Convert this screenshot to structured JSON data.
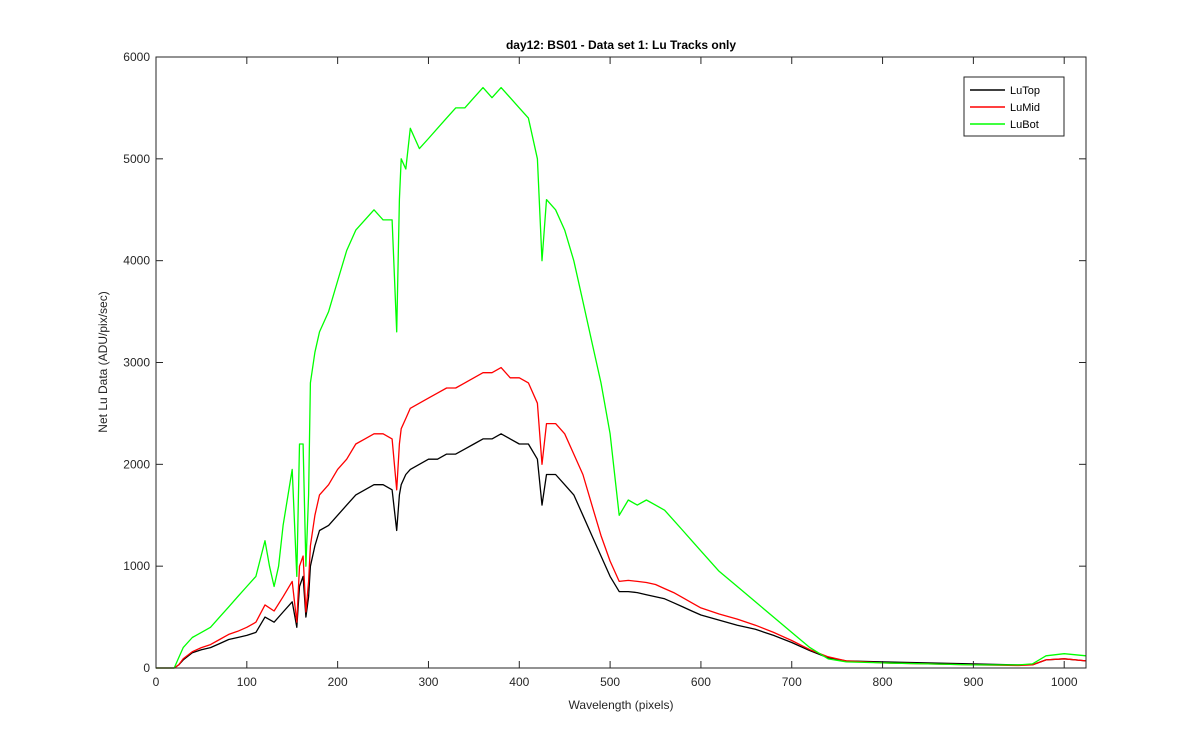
{
  "chart_data": {
    "type": "line",
    "title": "day12: BS01 - Data set 1: Lu Tracks only",
    "xlabel": "Wavelength (pixels)",
    "ylabel": "Net Lu Data (ADU/pix/sec)",
    "xlim": [
      0,
      1024
    ],
    "ylim": [
      0,
      6000
    ],
    "xticks": [
      0,
      100,
      200,
      300,
      400,
      500,
      600,
      700,
      800,
      900,
      1000
    ],
    "yticks": [
      0,
      1000,
      2000,
      3000,
      4000,
      5000,
      6000
    ],
    "grid": false,
    "legend_position": "top-right",
    "series": [
      {
        "name": "LuTop",
        "color": "#000000",
        "x": [
          0,
          20,
          25,
          30,
          40,
          50,
          60,
          70,
          80,
          90,
          100,
          110,
          120,
          130,
          140,
          150,
          155,
          158,
          162,
          165,
          168,
          170,
          175,
          180,
          190,
          200,
          210,
          220,
          230,
          240,
          250,
          260,
          265,
          268,
          270,
          275,
          280,
          290,
          300,
          310,
          320,
          330,
          340,
          350,
          360,
          370,
          380,
          390,
          400,
          410,
          420,
          425,
          430,
          440,
          450,
          460,
          470,
          480,
          490,
          500,
          510,
          520,
          530,
          540,
          550,
          560,
          570,
          580,
          590,
          600,
          620,
          640,
          660,
          680,
          700,
          720,
          740,
          760,
          800,
          850,
          900,
          950,
          965,
          980,
          1000,
          1024
        ],
        "values": [
          0,
          0,
          30,
          80,
          150,
          180,
          200,
          240,
          280,
          300,
          320,
          350,
          500,
          450,
          550,
          650,
          400,
          800,
          900,
          500,
          700,
          1000,
          1200,
          1350,
          1400,
          1500,
          1600,
          1700,
          1750,
          1800,
          1800,
          1750,
          1350,
          1700,
          1800,
          1900,
          1950,
          2000,
          2050,
          2050,
          2100,
          2100,
          2150,
          2200,
          2250,
          2250,
          2300,
          2250,
          2200,
          2200,
          2050,
          1600,
          1900,
          1900,
          1800,
          1700,
          1500,
          1300,
          1100,
          900,
          750,
          750,
          740,
          720,
          700,
          680,
          640,
          600,
          560,
          520,
          470,
          420,
          380,
          320,
          250,
          170,
          100,
          70,
          60,
          50,
          40,
          30,
          30,
          80,
          90,
          70
        ]
      },
      {
        "name": "LuMid",
        "color": "#ff0000",
        "x": [
          0,
          20,
          25,
          30,
          40,
          50,
          60,
          70,
          80,
          90,
          100,
          110,
          120,
          130,
          140,
          150,
          155,
          158,
          162,
          165,
          168,
          170,
          175,
          180,
          190,
          200,
          210,
          220,
          230,
          240,
          250,
          260,
          265,
          268,
          270,
          275,
          280,
          290,
          300,
          310,
          320,
          330,
          340,
          350,
          360,
          370,
          380,
          390,
          400,
          410,
          420,
          425,
          430,
          440,
          450,
          460,
          470,
          480,
          490,
          500,
          510,
          520,
          530,
          540,
          550,
          560,
          570,
          580,
          590,
          600,
          620,
          640,
          660,
          680,
          700,
          720,
          740,
          760,
          800,
          850,
          900,
          950,
          965,
          980,
          1000,
          1024
        ],
        "values": [
          0,
          0,
          30,
          90,
          160,
          200,
          230,
          280,
          330,
          360,
          400,
          450,
          620,
          560,
          700,
          850,
          450,
          1000,
          1100,
          550,
          850,
          1200,
          1500,
          1700,
          1800,
          1950,
          2050,
          2200,
          2250,
          2300,
          2300,
          2250,
          1750,
          2200,
          2350,
          2450,
          2550,
          2600,
          2650,
          2700,
          2750,
          2750,
          2800,
          2850,
          2900,
          2900,
          2950,
          2850,
          2850,
          2800,
          2600,
          2000,
          2400,
          2400,
          2300,
          2100,
          1900,
          1600,
          1300,
          1050,
          850,
          860,
          850,
          840,
          820,
          780,
          740,
          690,
          640,
          590,
          530,
          480,
          420,
          350,
          270,
          180,
          110,
          70,
          50,
          40,
          30,
          25,
          30,
          80,
          90,
          70
        ]
      },
      {
        "name": "LuBot",
        "color": "#00ff00",
        "x": [
          0,
          20,
          25,
          30,
          40,
          50,
          60,
          70,
          80,
          90,
          100,
          110,
          120,
          125,
          130,
          135,
          140,
          150,
          155,
          158,
          162,
          165,
          168,
          170,
          175,
          180,
          190,
          200,
          210,
          220,
          230,
          240,
          250,
          260,
          265,
          268,
          270,
          275,
          280,
          290,
          300,
          310,
          320,
          330,
          340,
          350,
          360,
          370,
          380,
          390,
          400,
          410,
          420,
          425,
          430,
          440,
          450,
          460,
          470,
          480,
          490,
          500,
          510,
          520,
          530,
          540,
          550,
          560,
          570,
          580,
          590,
          600,
          620,
          640,
          660,
          680,
          700,
          720,
          740,
          760,
          800,
          850,
          900,
          950,
          965,
          980,
          1000,
          1024
        ],
        "values": [
          0,
          0,
          100,
          200,
          300,
          350,
          400,
          500,
          600,
          700,
          800,
          900,
          1250,
          1000,
          800,
          1000,
          1400,
          1950,
          900,
          2200,
          2200,
          1000,
          1700,
          2800,
          3100,
          3300,
          3500,
          3800,
          4100,
          4300,
          4400,
          4500,
          4400,
          4400,
          3300,
          4600,
          5000,
          4900,
          5300,
          5100,
          5200,
          5300,
          5400,
          5500,
          5500,
          5600,
          5700,
          5600,
          5700,
          5600,
          5500,
          5400,
          5000,
          4000,
          4600,
          4500,
          4300,
          4000,
          3600,
          3200,
          2800,
          2300,
          1500,
          1650,
          1600,
          1650,
          1600,
          1550,
          1450,
          1350,
          1250,
          1150,
          950,
          800,
          650,
          500,
          350,
          200,
          90,
          60,
          50,
          40,
          30,
          30,
          40,
          120,
          140,
          120
        ]
      }
    ]
  }
}
